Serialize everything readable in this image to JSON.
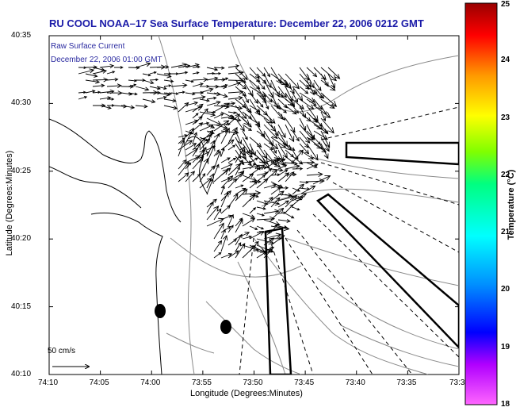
{
  "title": "RU COOL  NOAA–17  Sea Surface Temperature:  December 22, 2006 0212 GMT",
  "overlay": {
    "line1": "Raw Surface Current",
    "line2": "December 22, 2006 01:00 GMT"
  },
  "scale_label": "50 cm/s",
  "axes": {
    "xlabel": "Longitude (Degrees:Minutes)",
    "ylabel": "Latitude (Degrees:Minutes)",
    "xticks": [
      "74:10",
      "74:05",
      "74:00",
      "73:55",
      "73:50",
      "73:45",
      "73:40",
      "73:35",
      "73:3"
    ],
    "yticks": [
      "40:35",
      "40:30",
      "40:25",
      "40:20",
      "40:15",
      "40:10"
    ]
  },
  "colorbar": {
    "label": "Temperature (°C)",
    "ticks": [
      "25",
      "24",
      "23",
      "22",
      "21",
      "20",
      "19",
      "18"
    ],
    "min": 18,
    "max": 25
  }
}
